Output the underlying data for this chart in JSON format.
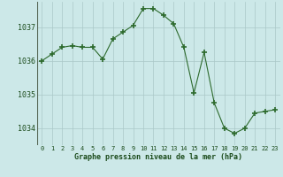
{
  "hours": [
    0,
    1,
    2,
    3,
    4,
    5,
    6,
    7,
    8,
    9,
    10,
    11,
    12,
    13,
    14,
    15,
    16,
    17,
    18,
    19,
    20,
    21,
    22,
    23
  ],
  "pressure": [
    1036.0,
    1036.2,
    1036.4,
    1036.45,
    1036.4,
    1036.4,
    1036.05,
    1036.65,
    1036.85,
    1037.05,
    1037.55,
    1037.55,
    1037.35,
    1037.1,
    1036.4,
    1035.05,
    1036.25,
    1034.75,
    1034.0,
    1033.85,
    1034.0,
    1034.45,
    1034.5,
    1034.55
  ],
  "ylim": [
    1033.5,
    1037.75
  ],
  "yticks": [
    1034,
    1035,
    1036,
    1037
  ],
  "xlabel": "Graphe pression niveau de la mer (hPa)",
  "line_color": "#2d6a2d",
  "marker": "+",
  "bg_color": "#cce8e8",
  "grid_color": "#aac8c8",
  "tick_color": "#1a4a1a",
  "label_color": "#1a4a1a"
}
